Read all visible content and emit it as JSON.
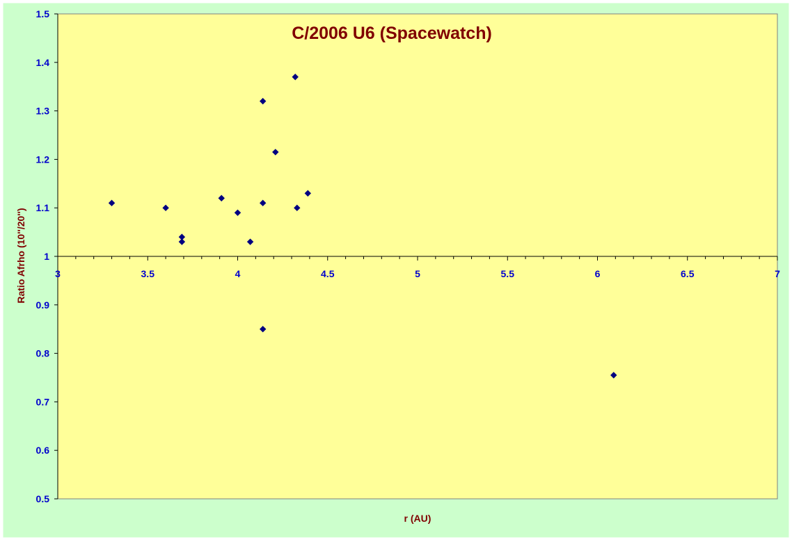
{
  "chart_data": {
    "type": "scatter",
    "title": "C/2006 U6 (Spacewatch)",
    "xlabel": "r (AU)",
    "ylabel": "Ratio Afrho (10''/20'')",
    "xlim": [
      3,
      7
    ],
    "ylim": [
      0.5,
      1.5
    ],
    "x_axis_crosses_at_y": 1,
    "x_ticks": [
      3,
      3.5,
      4,
      4.5,
      5,
      5.5,
      6,
      6.5,
      7
    ],
    "x_tick_labels": [
      "3",
      "3.5",
      "4",
      "4.5",
      "5",
      "5.5",
      "6",
      "6.5",
      "7"
    ],
    "y_ticks": [
      0.5,
      0.6,
      0.7,
      0.8,
      0.9,
      1,
      1.1,
      1.2,
      1.3,
      1.4,
      1.5
    ],
    "y_tick_labels": [
      "0.5",
      "0.6",
      "0.7",
      "0.8",
      "0.9",
      "1",
      "1.1",
      "1.2",
      "1.3",
      "1.4",
      "1.5"
    ],
    "grid": false,
    "legend": "none",
    "marker": "diamond",
    "series": [
      {
        "points": [
          {
            "x": 3.3,
            "y": 1.11
          },
          {
            "x": 3.6,
            "y": 1.1
          },
          {
            "x": 3.69,
            "y": 1.04
          },
          {
            "x": 3.69,
            "y": 1.03
          },
          {
            "x": 3.91,
            "y": 1.12
          },
          {
            "x": 4.0,
            "y": 1.09
          },
          {
            "x": 4.07,
            "y": 1.03
          },
          {
            "x": 4.14,
            "y": 1.11
          },
          {
            "x": 4.14,
            "y": 1.32
          },
          {
            "x": 4.14,
            "y": 0.85
          },
          {
            "x": 4.21,
            "y": 1.215
          },
          {
            "x": 4.32,
            "y": 1.37
          },
          {
            "x": 4.33,
            "y": 1.1
          },
          {
            "x": 4.39,
            "y": 1.13
          },
          {
            "x": 6.09,
            "y": 0.755
          }
        ]
      }
    ],
    "colors": {
      "outer_background": "#ccffcc",
      "plot_background": "#ffff99",
      "marker": "#000080",
      "tick_labels": "#0000cc",
      "title": "#800000",
      "axis_titles": "#800000"
    }
  }
}
